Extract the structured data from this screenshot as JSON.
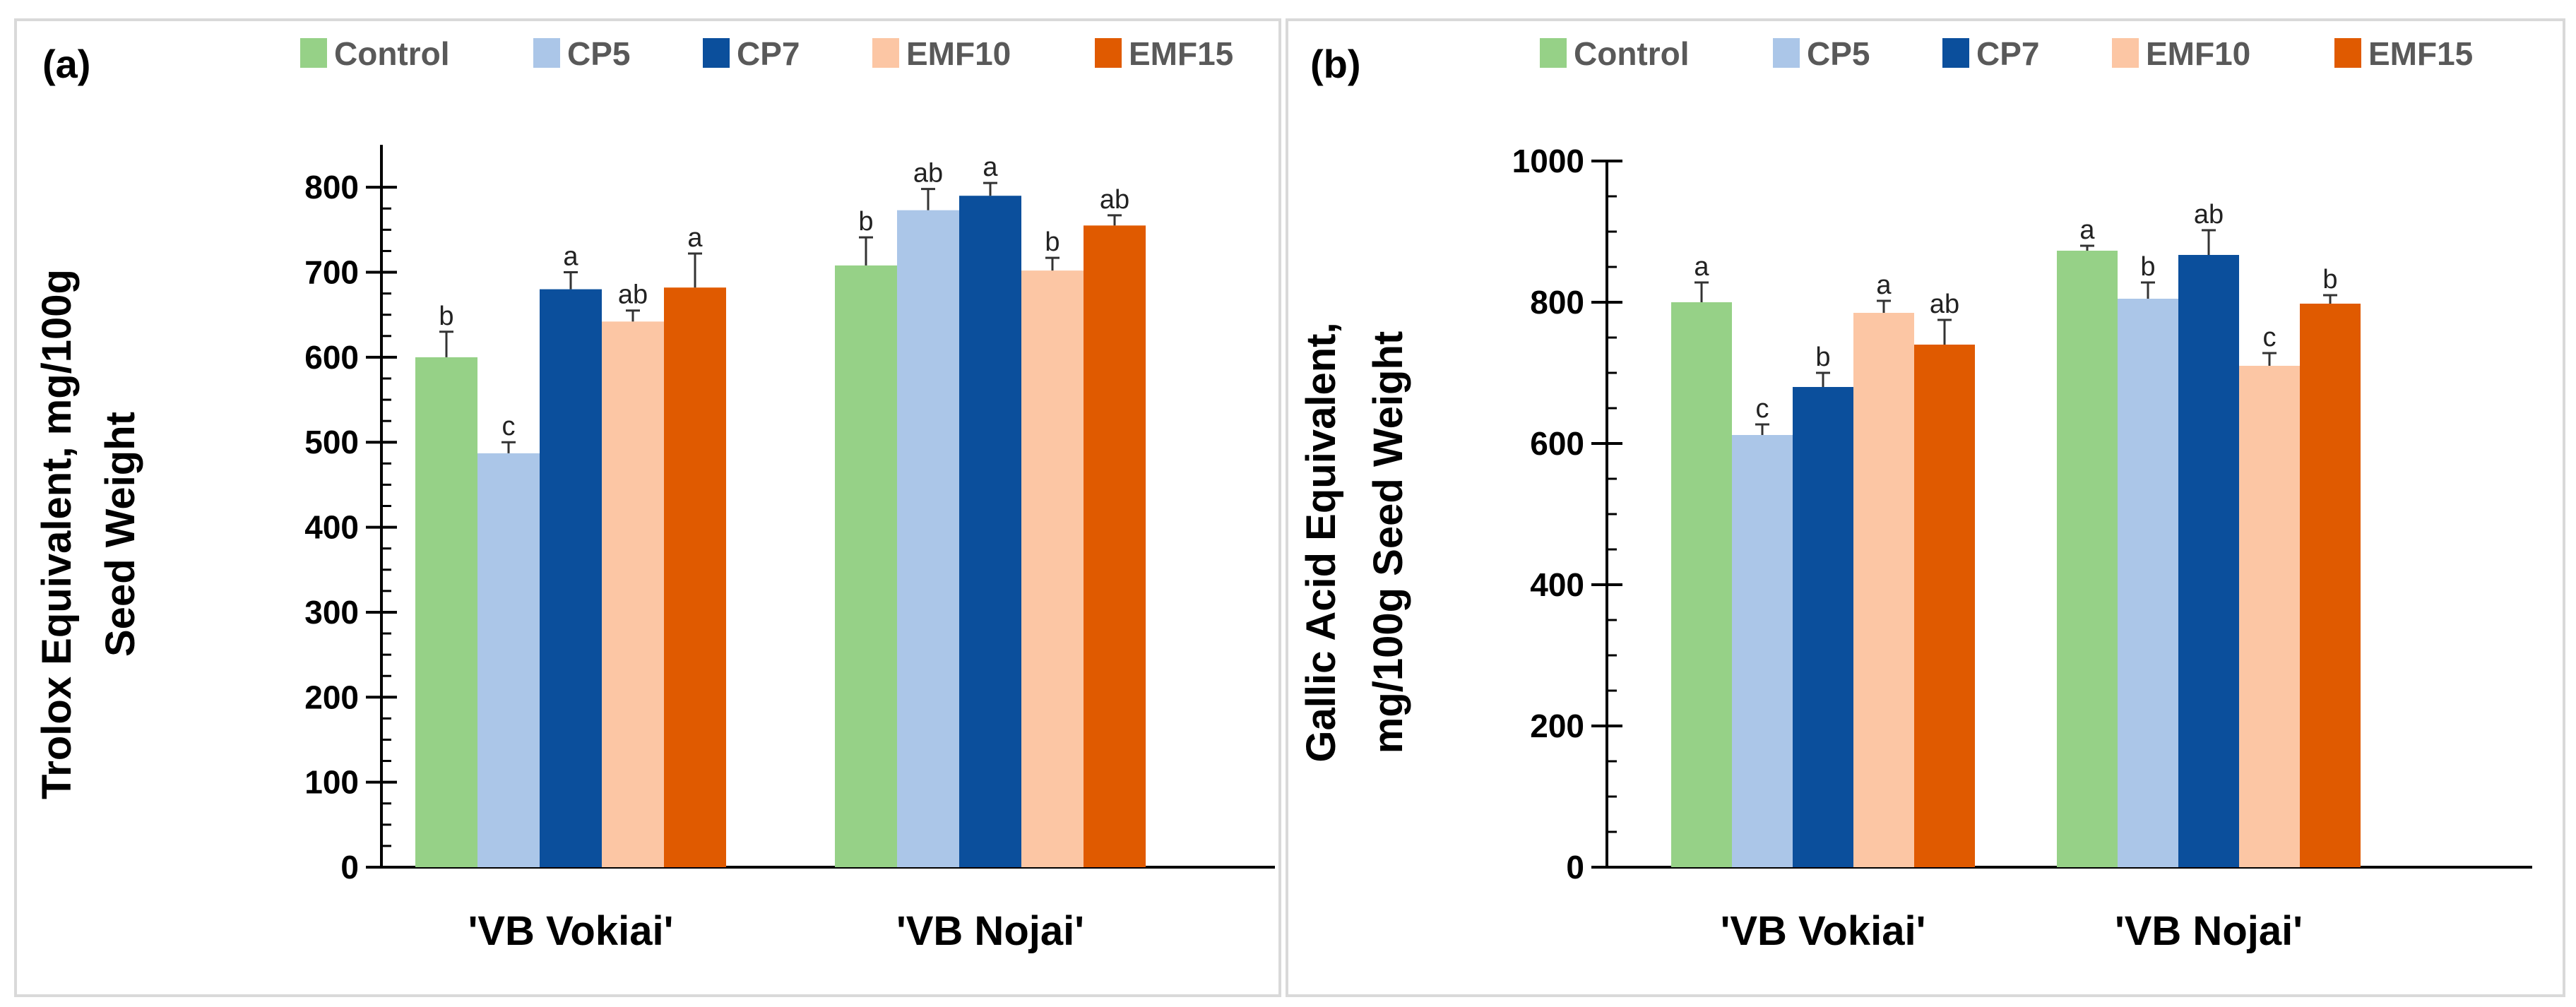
{
  "colors": {
    "Control": "#96d187",
    "CP5": "#abc6e8",
    "CP7": "#0b4f9c",
    "EMF10": "#fcc6a4",
    "EMF15": "#e05a00"
  },
  "chart_data": [
    {
      "type": "bar",
      "panel_label": "(a)",
      "categories": [
        "'VB Vokiai'",
        "'VB Nojai'"
      ],
      "ylabel_lines": [
        "Trolox Equivalent, mg/100g",
        "Seed Weight"
      ],
      "ylim": [
        0,
        850
      ],
      "yticks": [
        0,
        100,
        200,
        300,
        400,
        500,
        600,
        700,
        800
      ],
      "legend_position": "top",
      "series": [
        {
          "name": "Control",
          "values": [
            600,
            708
          ],
          "errors": [
            30,
            33
          ],
          "letters": [
            "b",
            "b"
          ]
        },
        {
          "name": "CP5",
          "values": [
            487,
            773
          ],
          "errors": [
            13,
            25
          ],
          "letters": [
            "c",
            "ab"
          ]
        },
        {
          "name": "CP7",
          "values": [
            680,
            790
          ],
          "errors": [
            20,
            15
          ],
          "letters": [
            "a",
            "a"
          ]
        },
        {
          "name": "EMF10",
          "values": [
            642,
            702
          ],
          "errors": [
            13,
            15
          ],
          "letters": [
            "ab",
            "b"
          ]
        },
        {
          "name": "EMF15",
          "values": [
            682,
            755
          ],
          "errors": [
            40,
            12
          ],
          "letters": [
            "a",
            "ab"
          ]
        }
      ]
    },
    {
      "type": "bar",
      "panel_label": "(b)",
      "categories": [
        "'VB Vokiai'",
        "'VB Nojai'"
      ],
      "ylabel_lines": [
        "Gallic Acid Equivalent,",
        "mg/100g  Seed Weight"
      ],
      "ylim": [
        0,
        1000
      ],
      "yticks": [
        0,
        200,
        400,
        600,
        800,
        1000
      ],
      "legend_position": "top",
      "series": [
        {
          "name": "Control",
          "values": [
            800,
            873
          ],
          "errors": [
            28,
            7
          ],
          "letters": [
            "a",
            "a"
          ]
        },
        {
          "name": "CP5",
          "values": [
            612,
            805
          ],
          "errors": [
            15,
            23
          ],
          "letters": [
            "c",
            "b"
          ]
        },
        {
          "name": "CP7",
          "values": [
            680,
            867
          ],
          "errors": [
            20,
            35
          ],
          "letters": [
            "b",
            "ab"
          ]
        },
        {
          "name": "EMF10",
          "values": [
            785,
            710
          ],
          "errors": [
            17,
            18
          ],
          "letters": [
            "a",
            "c"
          ]
        },
        {
          "name": "EMF15",
          "values": [
            740,
            798
          ],
          "errors": [
            35,
            12
          ],
          "letters": [
            "ab",
            "b"
          ]
        }
      ]
    }
  ]
}
